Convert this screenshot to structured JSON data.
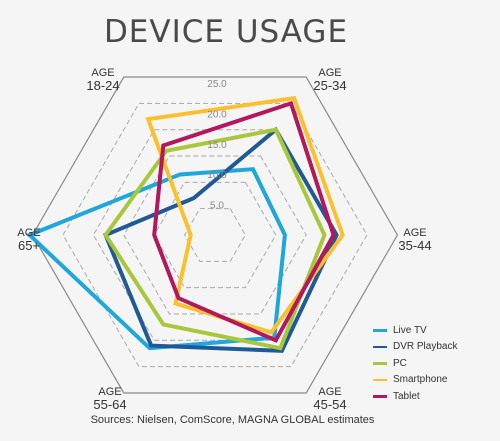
{
  "chart_data": {
    "type": "radar",
    "title": "DEVICE USAGE",
    "source": "Sources: Nielsen, ComScore, MAGNA GLOBAL estimates",
    "axes": [
      {
        "line1": "AGE",
        "line2": "25-34"
      },
      {
        "line1": "AGE",
        "line2": "35-44"
      },
      {
        "line1": "AGE",
        "line2": "45-54"
      },
      {
        "line1": "AGE",
        "line2": "55-64"
      },
      {
        "line1": "AGE",
        "line2": "65+"
      },
      {
        "line1": "AGE",
        "line2": "18-24"
      }
    ],
    "rlim": [
      0,
      25
    ],
    "ticks": [
      "5.0",
      "10.0",
      "15.0",
      "20.0",
      "25.0"
    ],
    "tick_values": [
      5,
      10,
      15,
      20,
      25
    ],
    "series": [
      {
        "name": "Live TV",
        "color": "#1fa7dc",
        "values": [
          12.5,
          11.5,
          19.5,
          21.5,
          30.5,
          11.5
        ]
      },
      {
        "name": "DVR Playback",
        "color": "#1f5a96",
        "values": [
          20.0,
          20.0,
          22.0,
          21.0,
          18.0,
          7.0
        ]
      },
      {
        "name": "PC",
        "color": "#a8c73a",
        "values": [
          20.0,
          18.0,
          21.5,
          17.0,
          18.0,
          16.0
        ]
      },
      {
        "name": "Smartphone",
        "color": "#fbc02d",
        "values": [
          26.0,
          21.0,
          18.5,
          13.0,
          4.0,
          22.0
        ]
      },
      {
        "name": "Tablet",
        "color": "#b3175c",
        "values": [
          25.0,
          19.5,
          20.0,
          12.0,
          10.0,
          17.0
        ]
      }
    ]
  }
}
